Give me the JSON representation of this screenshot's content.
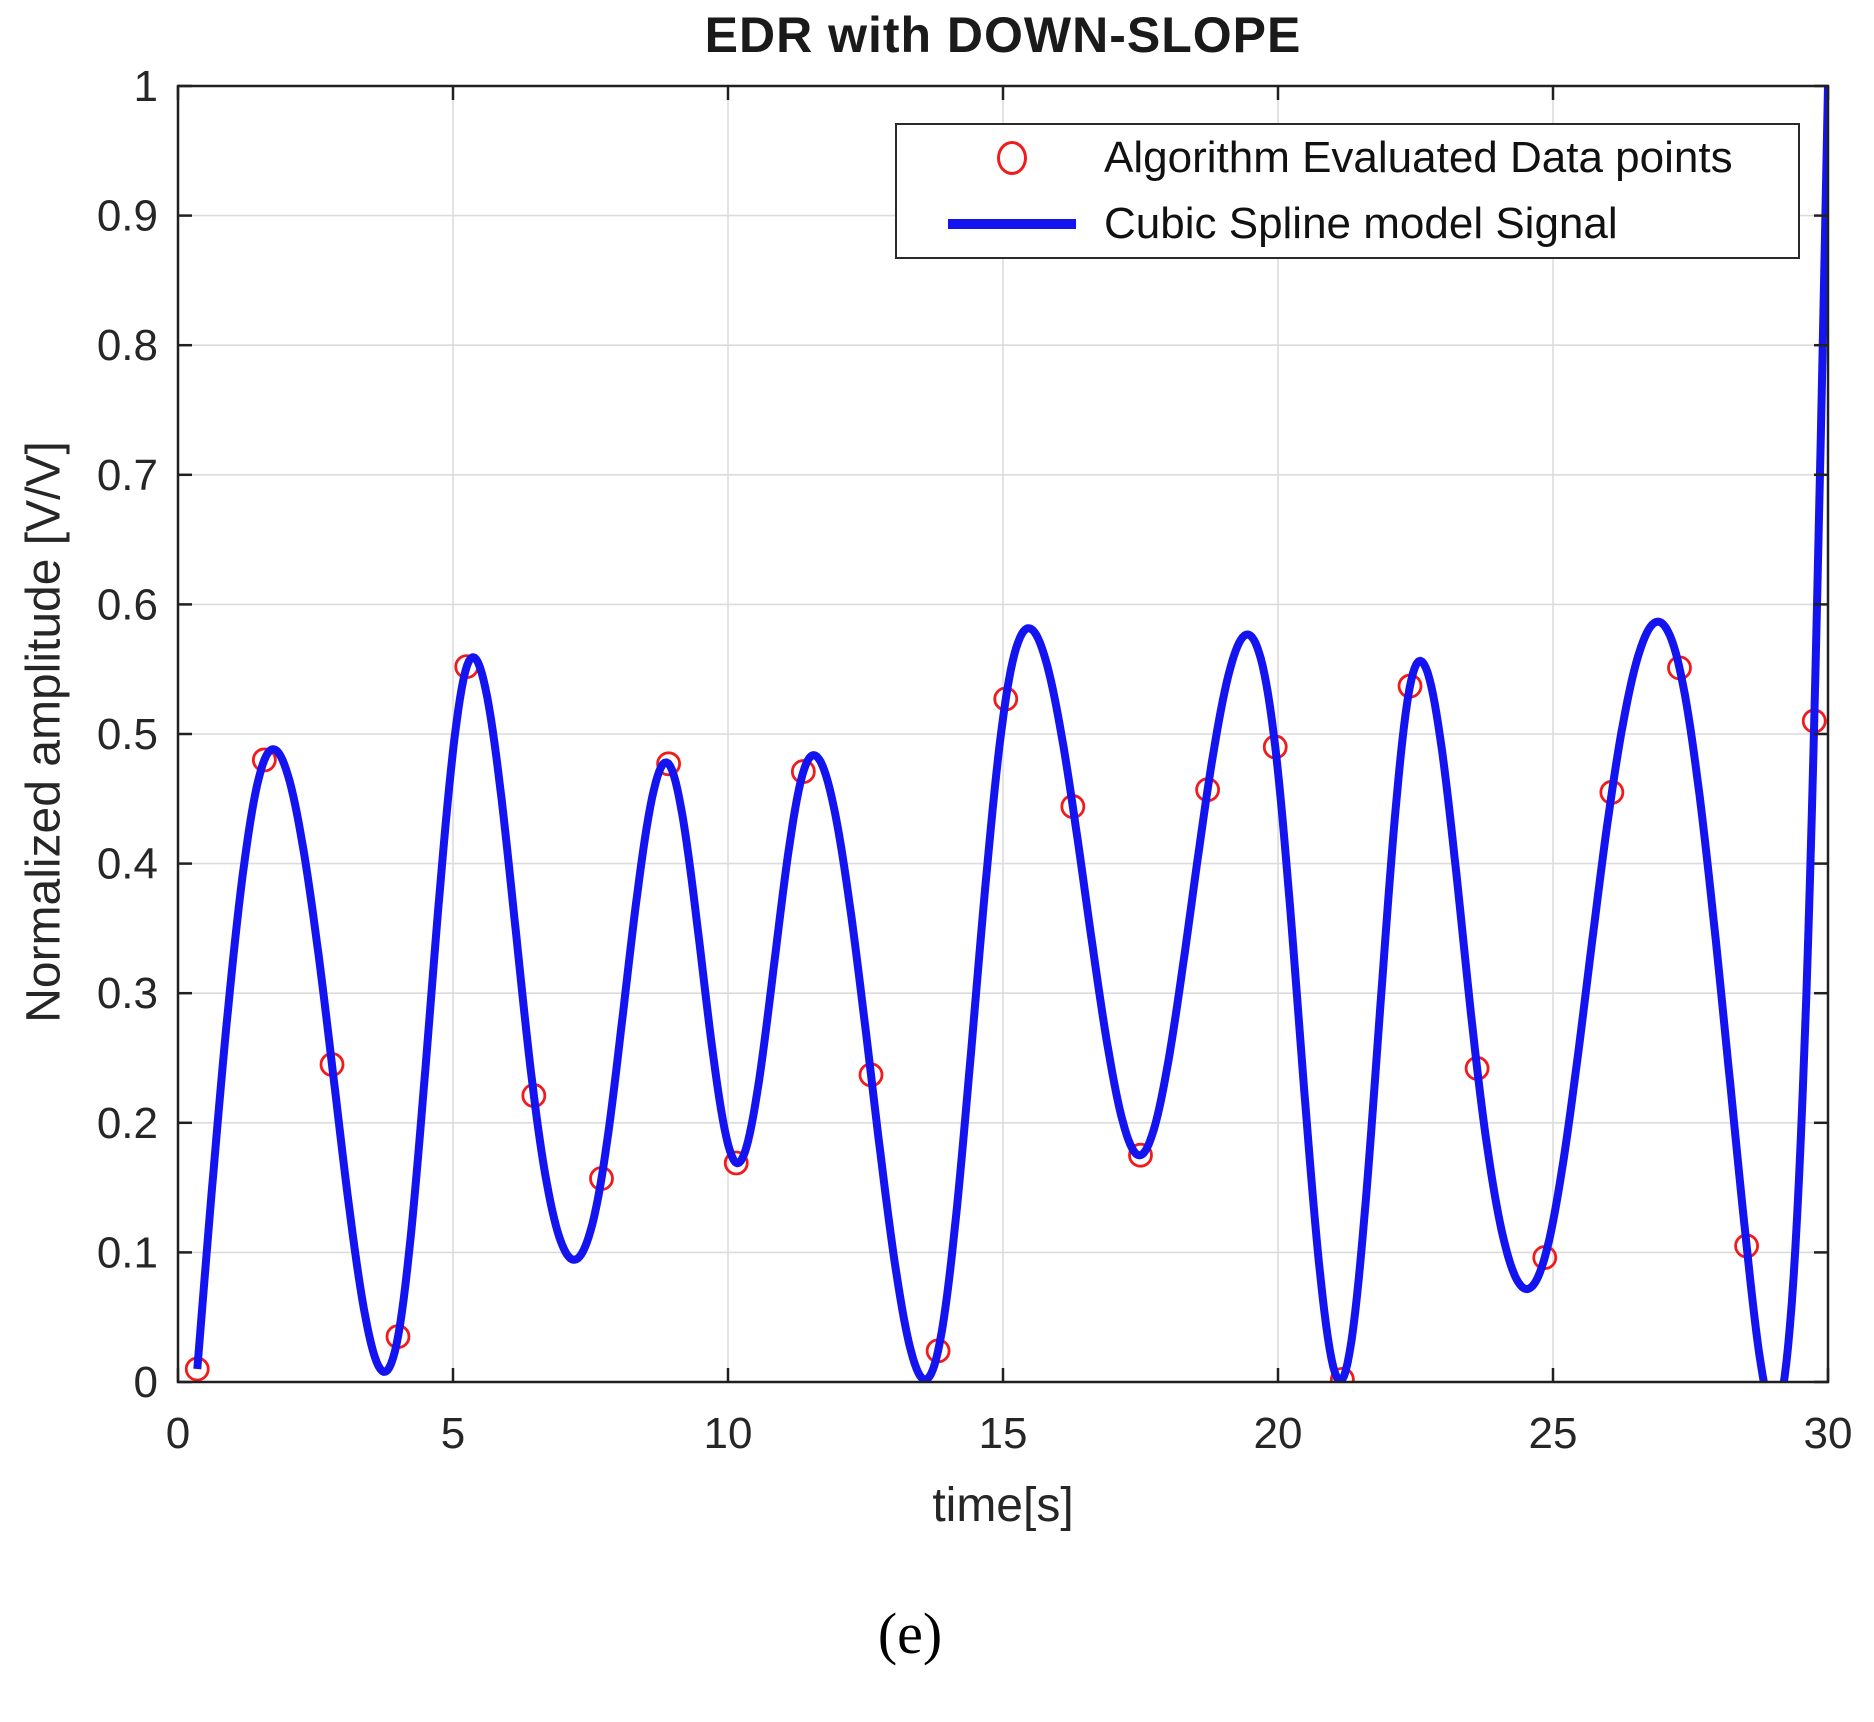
{
  "figure": {
    "caption": "(e)"
  },
  "chart_data": {
    "type": "line",
    "title": "EDR with DOWN-SLOPE",
    "xlabel": "time[s]",
    "ylabel": "Normalized amplitude [V/V]",
    "xlim": [
      0,
      30
    ],
    "ylim": [
      0,
      1
    ],
    "xticks": [
      0,
      5,
      10,
      15,
      20,
      25,
      30
    ],
    "yticks": [
      0,
      0.1,
      0.2,
      0.3,
      0.4,
      0.5,
      0.6,
      0.7,
      0.8,
      0.9,
      1
    ],
    "grid": true,
    "legend": {
      "position": "top-right",
      "entries": [
        {
          "label": "Algorithm Evaluated Data points",
          "marker": "circle",
          "color": "#f21b1b"
        },
        {
          "label": "Cubic Spline model Signal",
          "marker": "line",
          "color": "#1414f0"
        }
      ]
    },
    "series": [
      {
        "name": "Algorithm Evaluated Data points",
        "type": "scatter",
        "marker": "open-circle",
        "color": "#f21b1b",
        "points": [
          [
            0.35,
            0.01
          ],
          [
            1.57,
            0.48
          ],
          [
            2.8,
            0.245
          ],
          [
            4.0,
            0.035
          ],
          [
            5.25,
            0.552
          ],
          [
            6.47,
            0.221
          ],
          [
            7.7,
            0.157
          ],
          [
            8.92,
            0.477
          ],
          [
            10.15,
            0.169
          ],
          [
            11.37,
            0.471
          ],
          [
            12.6,
            0.237
          ],
          [
            13.82,
            0.024
          ],
          [
            15.05,
            0.527
          ],
          [
            16.27,
            0.444
          ],
          [
            17.5,
            0.175
          ],
          [
            18.72,
            0.457
          ],
          [
            19.95,
            0.49
          ],
          [
            21.17,
            0.002
          ],
          [
            22.4,
            0.537
          ],
          [
            23.62,
            0.242
          ],
          [
            24.85,
            0.096
          ],
          [
            26.07,
            0.455
          ],
          [
            27.3,
            0.551
          ],
          [
            28.52,
            0.105
          ],
          [
            29.75,
            0.51
          ]
        ]
      },
      {
        "name": "Cubic Spline model Signal",
        "type": "natural-cubic-spline",
        "color": "#1414f0",
        "line_width": 8,
        "knots": [
          [
            0.35,
            0.01
          ],
          [
            1.57,
            0.48
          ],
          [
            2.8,
            0.245
          ],
          [
            4.0,
            0.035
          ],
          [
            5.25,
            0.552
          ],
          [
            6.47,
            0.221
          ],
          [
            7.7,
            0.157
          ],
          [
            8.92,
            0.477
          ],
          [
            10.15,
            0.169
          ],
          [
            11.37,
            0.471
          ],
          [
            12.6,
            0.237
          ],
          [
            13.82,
            0.024
          ],
          [
            15.05,
            0.527
          ],
          [
            16.27,
            0.444
          ],
          [
            17.5,
            0.175
          ],
          [
            18.72,
            0.457
          ],
          [
            19.95,
            0.49
          ],
          [
            21.17,
            0.002
          ],
          [
            22.4,
            0.537
          ],
          [
            23.62,
            0.242
          ],
          [
            24.85,
            0.096
          ],
          [
            26.07,
            0.455
          ],
          [
            27.3,
            0.551
          ],
          [
            28.52,
            0.105
          ],
          [
            29.75,
            0.51
          ],
          [
            30.0,
            1.0
          ]
        ]
      }
    ],
    "colors": {
      "frame": "#202020",
      "grid": "#dcdcdc",
      "tick_label": "#262626",
      "background": "#ffffff"
    }
  }
}
